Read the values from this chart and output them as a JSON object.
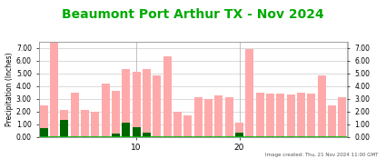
{
  "title": "Beaumont Port Arthur TX - Nov 2024",
  "title_color": "#00aa00",
  "ylabel": "Precipitation (Inches)",
  "ylim": [
    0.0,
    7.5
  ],
  "yticks": [
    0.0,
    1.0,
    2.0,
    3.0,
    4.0,
    5.0,
    6.0,
    7.0
  ],
  "ytick_labels": [
    "0.00",
    "1.00",
    "2.00",
    "3.00",
    "4.00",
    "5.00",
    "6.00",
    "7.00"
  ],
  "days": [
    1,
    2,
    3,
    4,
    5,
    6,
    7,
    8,
    9,
    10,
    11,
    12,
    13,
    14,
    15,
    16,
    17,
    18,
    19,
    20,
    21,
    22,
    23,
    24,
    25,
    26,
    27,
    28,
    29,
    30
  ],
  "normal_precip": [
    2.5,
    7.5,
    2.1,
    3.5,
    2.1,
    2.0,
    4.2,
    3.6,
    5.3,
    5.1,
    5.3,
    4.8,
    6.3,
    2.0,
    1.7,
    3.1,
    3.0,
    3.25,
    3.1,
    1.1,
    6.9,
    3.5,
    3.4,
    3.4,
    3.35,
    3.5,
    3.4,
    4.8,
    2.5,
    3.1
  ],
  "observed_precip": [
    0.65,
    0.0,
    1.35,
    0.0,
    0.0,
    0.0,
    0.0,
    0.25,
    1.1,
    0.75,
    0.35,
    0.0,
    0.0,
    0.0,
    0.0,
    0.0,
    0.0,
    0.0,
    0.0,
    0.35,
    0.0,
    0.0,
    0.0,
    0.0,
    0.0,
    0.0,
    0.0,
    0.0,
    0.0,
    0.0
  ],
  "normal_color": "#ffaaaa",
  "observed_color": "#006600",
  "bg_color": "#ffffff",
  "grid_color": "#cccccc",
  "grid_color_v": "#aaaaaa",
  "footnote": "Image created: Thu, 21 Nov 2024 11:00 GMT",
  "vlines": [
    10,
    20
  ],
  "baseline_color": "#00bb00",
  "title_fontsize": 10,
  "ylabel_fontsize": 5.5,
  "ytick_fontsize": 5.5,
  "xtick_fontsize": 6.5,
  "footnote_fontsize": 4.0
}
